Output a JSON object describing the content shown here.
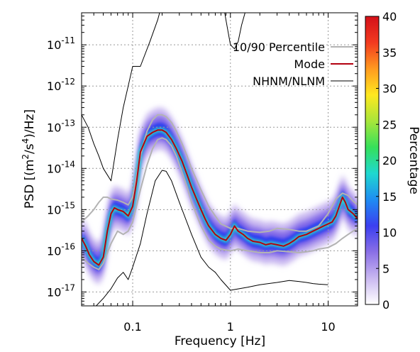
{
  "chart_data": {
    "type": "heatmap",
    "title": "",
    "xlabel": "Frequency [Hz]",
    "ylabel_parts": {
      "prefix": "PSD [(m",
      "sup1": "2",
      "mid": "/s",
      "sup2": "4",
      "suffix": ")/Hz]"
    },
    "x_scale": "log",
    "y_scale": "log",
    "xlim": [
      0.03,
      20
    ],
    "ylim": [
      4.6e-18,
      6e-11
    ],
    "grid": true,
    "x_ticks": [
      {
        "value": 0.1,
        "label": "0.1"
      },
      {
        "value": 1,
        "label": "1"
      },
      {
        "value": 10,
        "label": "10"
      }
    ],
    "y_ticks": [
      {
        "value": 1e-17,
        "base": "10",
        "exp": "-17"
      },
      {
        "value": 1e-16,
        "base": "10",
        "exp": "-16"
      },
      {
        "value": 1e-15,
        "base": "10",
        "exp": "-15"
      },
      {
        "value": 1e-14,
        "base": "10",
        "exp": "-14"
      },
      {
        "value": 1e-13,
        "base": "10",
        "exp": "-13"
      },
      {
        "value": 1e-12,
        "base": "10",
        "exp": "-12"
      },
      {
        "value": 1e-11,
        "base": "10",
        "exp": "-11"
      }
    ],
    "colorbar": {
      "label": "Percentage",
      "min": 0,
      "max": 40,
      "ticks": [
        "0",
        "5",
        "10",
        "15",
        "20",
        "25",
        "30",
        "35",
        "40"
      ],
      "colors": [
        "#ffffff",
        "#c9b8f0",
        "#8a6fe6",
        "#3b3ff0",
        "#1f8cf2",
        "#1fd8d0",
        "#35e05a",
        "#a8e63a",
        "#ffe81f",
        "#ff9a1f",
        "#f23a1f",
        "#d4101a"
      ]
    },
    "legend": {
      "position": "top-right",
      "entries": [
        {
          "label": "10/90 Percentile",
          "color": "#b3b3b3"
        },
        {
          "label": "Mode",
          "color": "#b3000f"
        },
        {
          "label": "NHNM/NLNM",
          "color": "#000000"
        }
      ]
    },
    "series": [
      {
        "name": "Mode",
        "color": "#b3000f",
        "x": [
          0.03,
          0.033,
          0.036,
          0.04,
          0.045,
          0.05,
          0.055,
          0.06,
          0.065,
          0.07,
          0.08,
          0.09,
          0.1,
          0.11,
          0.12,
          0.14,
          0.16,
          0.18,
          0.2,
          0.22,
          0.25,
          0.28,
          0.32,
          0.36,
          0.4,
          0.45,
          0.5,
          0.55,
          0.6,
          0.7,
          0.8,
          0.9,
          1.0,
          1.1,
          1.2,
          1.35,
          1.5,
          1.7,
          2.0,
          2.3,
          2.6,
          3.0,
          3.5,
          4.0,
          4.5,
          5.0,
          6.0,
          7.0,
          8.0,
          9.0,
          10.0,
          11.0,
          12.0,
          13.0,
          14.0,
          15.0,
          16.0,
          18.0,
          20.0
        ],
        "y": [
          2e-16,
          1.3e-16,
          8e-17,
          5.5e-17,
          4.5e-17,
          7e-17,
          3e-16,
          8e-16,
          1.1e-15,
          1e-15,
          9e-16,
          7e-16,
          1.2e-15,
          5e-15,
          2.5e-14,
          6e-14,
          7.5e-14,
          8.5e-14,
          8.5e-14,
          7.5e-14,
          5e-14,
          3e-14,
          1.5e-14,
          7e-15,
          3.5e-15,
          1.8e-15,
          1e-15,
          6e-16,
          4e-16,
          2.5e-16,
          2e-16,
          1.8e-16,
          2.5e-16,
          4e-16,
          3e-16,
          2.5e-16,
          2e-16,
          1.7e-16,
          1.6e-16,
          1.4e-16,
          1.5e-16,
          1.4e-16,
          1.3e-16,
          1.5e-16,
          1.8e-16,
          2.2e-16,
          2.5e-16,
          3e-16,
          3.5e-16,
          4e-16,
          4.5e-16,
          5e-16,
          7e-16,
          1.2e-15,
          2e-15,
          1.5e-15,
          1e-15,
          8e-16,
          6e-16
        ]
      },
      {
        "name": "10/90 Percentile",
        "color": "#b3b3b3",
        "x": [
          0.03,
          0.035,
          0.04,
          0.045,
          0.05,
          0.055,
          0.06,
          0.07,
          0.08,
          0.09,
          0.1,
          0.12,
          0.14,
          0.16,
          0.18,
          0.2,
          0.22,
          0.25,
          0.28,
          0.32,
          0.36,
          0.4,
          0.5,
          0.6,
          0.7,
          0.8,
          1.0,
          1.2,
          1.5,
          2.0,
          2.5,
          3.0,
          4.0,
          5.0,
          6.0,
          7.0,
          8.0,
          10.0,
          12.0,
          14.0,
          16.0,
          18.0,
          20.0
        ],
        "y": [
          5e-16,
          7e-16,
          1e-15,
          1.5e-15,
          2e-15,
          2e-15,
          1.8e-15,
          1.7e-15,
          1.5e-15,
          1.3e-15,
          2e-15,
          2e-14,
          8e-14,
          1.5e-13,
          2e-13,
          2e-13,
          1.8e-13,
          1.3e-13,
          8e-14,
          4e-14,
          2e-14,
          1e-14,
          3e-15,
          1.2e-15,
          7e-16,
          4.5e-16,
          3.5e-16,
          3.5e-16,
          3e-16,
          2.8e-16,
          3e-16,
          3.5e-16,
          3.3e-16,
          3e-16,
          3e-16,
          3.5e-16,
          4e-16,
          8e-16,
          1.8e-15,
          2.5e-15,
          2.2e-15,
          1.6e-15,
          1.3e-15
        ]
      },
      {
        "name": "10/90 Percentile",
        "color": "#b3b3b3",
        "x": [
          0.03,
          0.035,
          0.04,
          0.045,
          0.05,
          0.06,
          0.07,
          0.08,
          0.09,
          0.1,
          0.12,
          0.14,
          0.16,
          0.18,
          0.2,
          0.22,
          0.25,
          0.28,
          0.32,
          0.36,
          0.4,
          0.5,
          0.6,
          0.7,
          0.8,
          1.0,
          1.2,
          1.5,
          2.0,
          2.5,
          3.0,
          4.0,
          5.0,
          6.0,
          7.0,
          8.0,
          10.0,
          12.0,
          14.0,
          16.0,
          18.0,
          20.0
        ],
        "y": [
          7e-17,
          5e-17,
          4e-17,
          3.5e-17,
          5e-17,
          1.5e-16,
          3e-16,
          2.5e-16,
          3e-16,
          5e-16,
          3e-15,
          1.2e-14,
          3e-14,
          5e-14,
          5.5e-14,
          5e-14,
          3.5e-14,
          2e-14,
          8e-15,
          3.5e-15,
          1.5e-15,
          4e-16,
          1.8e-16,
          1.3e-16,
          1.1e-16,
          1e-16,
          1.1e-16,
          1e-16,
          9e-17,
          9e-17,
          1e-16,
          9.5e-17,
          9e-17,
          9.5e-17,
          1e-16,
          1.1e-16,
          1.2e-16,
          1.5e-16,
          2e-16,
          2.5e-16,
          3e-16,
          3.5e-16
        ]
      },
      {
        "name": "NLNM",
        "color": "#000000",
        "x": [
          0.03,
          0.035,
          0.04,
          0.05,
          0.06,
          0.07,
          0.08,
          0.09,
          0.1,
          0.12,
          0.14,
          0.17,
          0.2,
          0.22,
          0.25,
          0.3,
          0.4,
          0.5,
          0.6,
          0.7,
          0.8,
          1.0,
          1.5,
          2.0,
          3.0,
          4.0,
          5.0,
          6.0,
          7.0,
          8.0,
          10.0
        ],
        "y": [
          2e-18,
          3e-18,
          4e-18,
          7e-18,
          1.2e-17,
          2.2e-17,
          3e-17,
          2e-17,
          4e-17,
          1.5e-16,
          8e-16,
          5e-15,
          9e-15,
          8.5e-15,
          5e-15,
          1.5e-15,
          2.5e-16,
          7e-17,
          4e-17,
          3e-17,
          2e-17,
          1.1e-17,
          1.3e-17,
          1.5e-17,
          1.7e-17,
          1.9e-17,
          1.8e-17,
          1.7e-17,
          1.6e-17,
          1.55e-17,
          1.5e-17
        ]
      },
      {
        "name": "NHNM",
        "color": "#000000",
        "x": [
          0.03,
          0.035,
          0.04,
          0.045,
          0.05,
          0.06,
          0.07,
          0.08,
          0.09,
          0.1,
          0.12,
          0.15,
          0.18,
          0.2,
          0.22,
          0.25,
          0.3,
          0.4,
          0.5,
          0.6,
          0.7,
          0.8,
          0.9,
          1.0,
          1.1,
          1.2,
          1.3,
          1.5,
          2.0
        ],
        "y": [
          2e-13,
          1e-13,
          4e-14,
          2e-14,
          1e-14,
          5e-15,
          5e-14,
          3e-13,
          1e-12,
          3e-12,
          3e-12,
          1.2e-11,
          4e-11,
          1e-10,
          4e-10,
          1e-09,
          1e-09,
          1e-09,
          1e-09,
          1e-09,
          8e-10,
          2e-10,
          4e-11,
          1e-11,
          8e-12,
          1.2e-11,
          3e-11,
          1e-10,
          1e-09
        ]
      }
    ]
  }
}
